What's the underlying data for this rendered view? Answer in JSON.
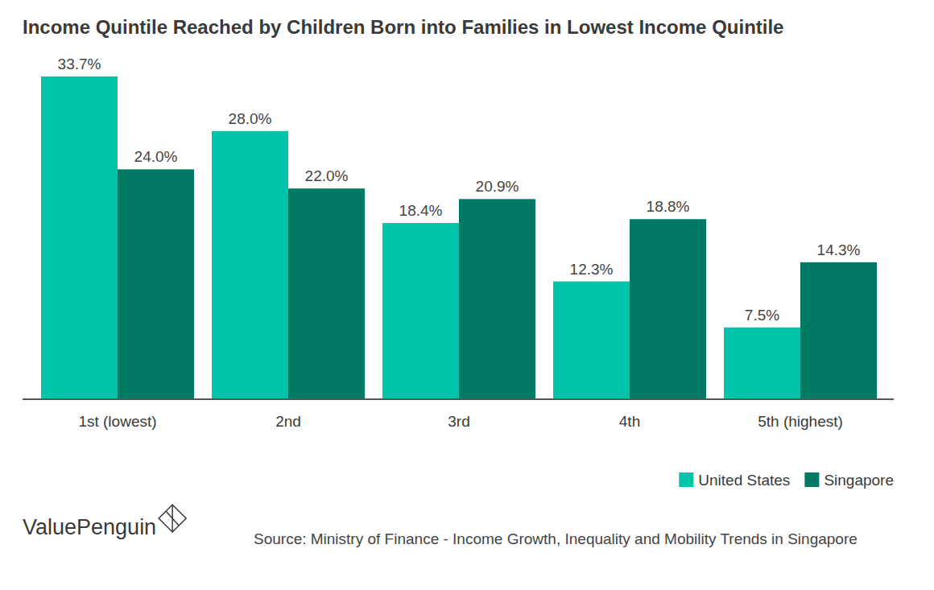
{
  "chart_data": {
    "type": "bar",
    "title": "Income Quintile Reached by Children Born into Families in Lowest Income Quintile",
    "categories": [
      "1st (lowest)",
      "2nd",
      "3rd",
      "4th",
      "5th (highest)"
    ],
    "series": [
      {
        "name": "United States",
        "color": "#00c4aa",
        "values": [
          33.7,
          28.0,
          18.4,
          12.3,
          7.5
        ],
        "value_labels": [
          "33.7%",
          "28.0%",
          "18.4%",
          "12.3%",
          "7.5%"
        ]
      },
      {
        "name": "Singapore",
        "color": "#007a64",
        "values": [
          24.0,
          22.0,
          20.9,
          18.8,
          14.3
        ],
        "value_labels": [
          "24.0%",
          "22.0%",
          "20.9%",
          "18.8%",
          "14.3%"
        ]
      }
    ],
    "ylim": [
      0,
      35
    ],
    "data_labels": true,
    "tick_labels": "x",
    "grid": false,
    "legend": "bottom-right",
    "brand": "ValuePenguin",
    "source": "Source: Ministry of Finance - Income Growth, Inequality and Mobility Trends in Singapore"
  }
}
